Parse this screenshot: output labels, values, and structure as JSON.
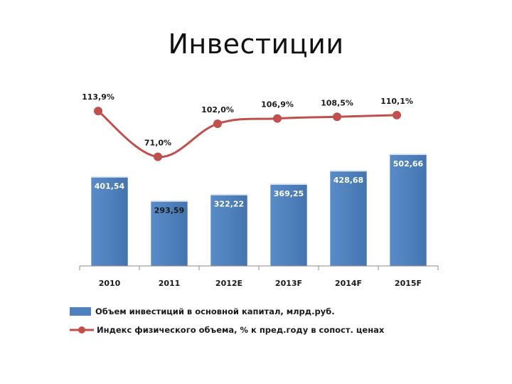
{
  "slide": {
    "title": "Инвестиции"
  },
  "chart_data": {
    "type": "bar",
    "categories": [
      "2010",
      "2011",
      "2012E",
      "2013F",
      "2014F",
      "2015F"
    ],
    "series": [
      {
        "name": "Объем инвестиций в основной капитал, млрд.руб.",
        "type": "bar",
        "color": "#4f81bd",
        "values": [
          401.54,
          293.59,
          322.22,
          369.25,
          428.68,
          502.66
        ],
        "labels": [
          "401,54",
          "293,59",
          "322,22",
          "369,25",
          "428,68",
          "502,66"
        ]
      },
      {
        "name": "Индекс физического объема, % к пред.году в сопост. ценах",
        "type": "line",
        "color": "#c0504d",
        "values": [
          113.9,
          71.0,
          102.0,
          106.9,
          108.5,
          110.1
        ],
        "labels": [
          "113,9%",
          "71,0%",
          "102,0%",
          "106,9%",
          "108,5%",
          "110,1%"
        ]
      }
    ],
    "grid": false,
    "legend_position": "bottom"
  }
}
